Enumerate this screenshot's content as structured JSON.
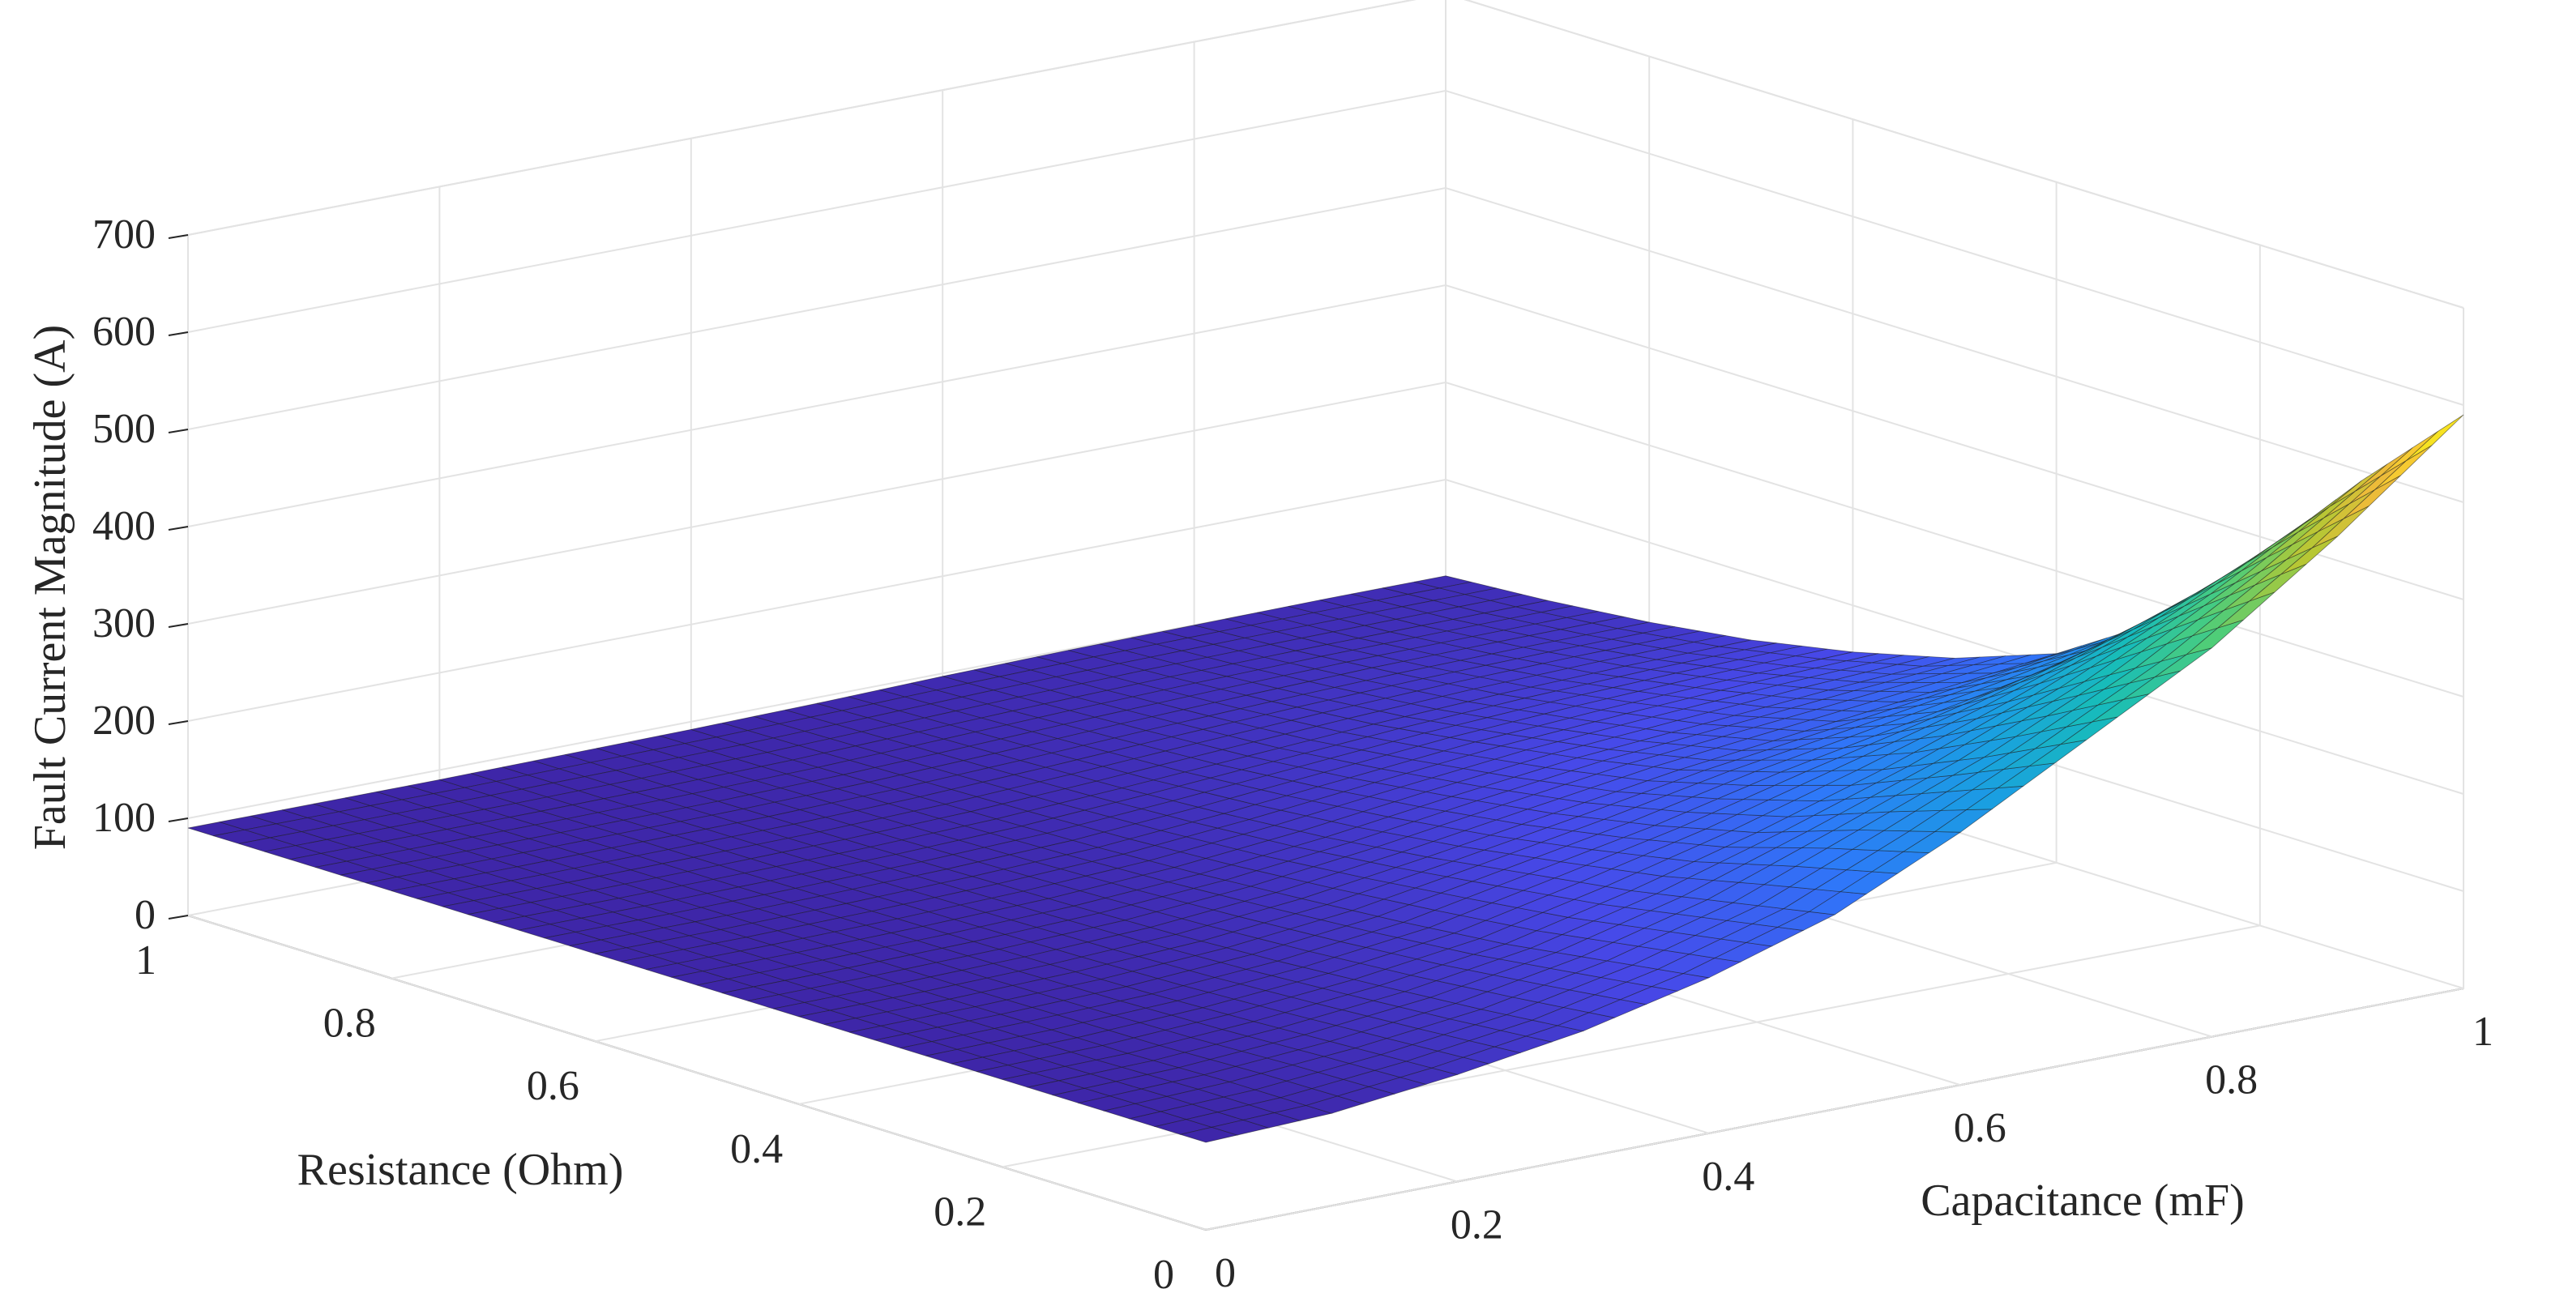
{
  "chart_data": {
    "type": "surface",
    "title": "",
    "xlabel": "Capacitance (mF)",
    "ylabel": "Resistance (Ohm)",
    "zlabel": "Fault Current Magnitude (A)",
    "x_range": [
      0,
      1
    ],
    "y_range": [
      0,
      1
    ],
    "z_range": [
      0,
      700
    ],
    "x_ticks": [
      {
        "value": 0,
        "label": "0"
      },
      {
        "value": 0.2,
        "label": "0.2"
      },
      {
        "value": 0.4,
        "label": "0.4"
      },
      {
        "value": 0.6,
        "label": "0.6"
      },
      {
        "value": 0.8,
        "label": "0.8"
      },
      {
        "value": 1,
        "label": "1"
      }
    ],
    "y_ticks": [
      {
        "value": 0,
        "label": "0"
      },
      {
        "value": 0.2,
        "label": "0.2"
      },
      {
        "value": 0.4,
        "label": "0.4"
      },
      {
        "value": 0.6,
        "label": "0.6"
      },
      {
        "value": 0.8,
        "label": "0.8"
      },
      {
        "value": 1,
        "label": "1"
      }
    ],
    "z_ticks": [
      {
        "value": 0,
        "label": "0"
      },
      {
        "value": 100,
        "label": "100"
      },
      {
        "value": 200,
        "label": "200"
      },
      {
        "value": 300,
        "label": "300"
      },
      {
        "value": 400,
        "label": "400"
      },
      {
        "value": 500,
        "label": "500"
      },
      {
        "value": 600,
        "label": "600"
      },
      {
        "value": 700,
        "label": "700"
      }
    ],
    "grid": true,
    "colormap": "parula",
    "surface": {
      "x": [
        0,
        0.1,
        0.2,
        0.3,
        0.4,
        0.5,
        0.6,
        0.7,
        0.8,
        0.9,
        1.0
      ],
      "y": [
        0,
        0.1,
        0.2,
        0.3,
        0.4,
        0.5,
        0.6,
        0.7,
        0.8,
        0.9,
        1.0
      ],
      "z": [
        [
          90,
          95,
          110,
          130,
          160,
          200,
          260,
          330,
          400,
          490,
          590
        ],
        [
          90,
          95,
          105,
          120,
          145,
          180,
          230,
          280,
          340,
          410,
          490
        ],
        [
          90,
          92,
          100,
          112,
          130,
          160,
          195,
          235,
          280,
          330,
          380
        ],
        [
          90,
          92,
          96,
          105,
          120,
          145,
          170,
          200,
          225,
          250,
          280
        ],
        [
          90,
          91,
          94,
          100,
          112,
          130,
          150,
          170,
          185,
          200,
          215
        ],
        [
          90,
          91,
          93,
          97,
          105,
          118,
          135,
          150,
          160,
          170,
          178
        ],
        [
          90,
          90,
          92,
          95,
          100,
          110,
          122,
          134,
          142,
          148,
          152
        ],
        [
          90,
          90,
          91,
          93,
          97,
          104,
          112,
          120,
          126,
          130,
          132
        ],
        [
          90,
          90,
          91,
          92,
          95,
          100,
          106,
          111,
          115,
          117,
          118
        ],
        [
          90,
          90,
          90,
          91,
          93,
          97,
          101,
          104,
          106,
          107,
          108
        ],
        [
          90,
          90,
          90,
          91,
          92,
          94,
          97,
          99,
          100,
          101,
          101
        ]
      ]
    }
  }
}
